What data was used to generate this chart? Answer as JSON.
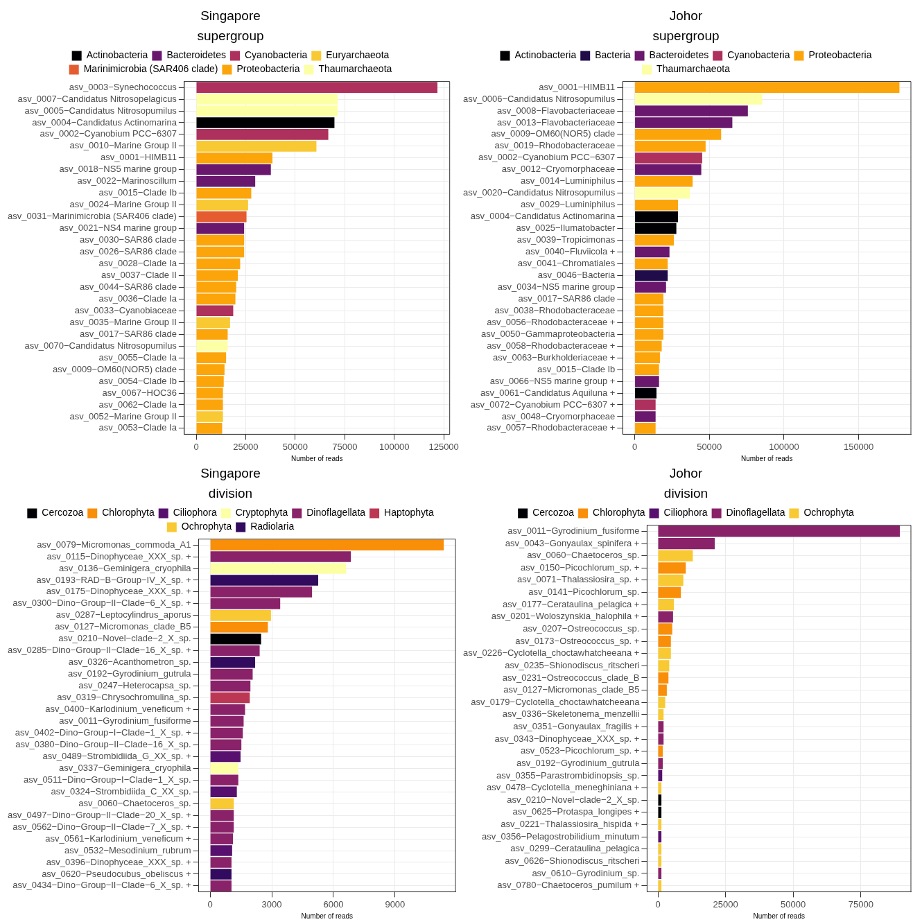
{
  "chart_data": [
    {
      "type": "bar",
      "orientation": "horizontal",
      "stacked": true,
      "title": "Singapore",
      "xlabel": "Number of reads",
      "legend_title": "supergroup",
      "legend": "top",
      "grid": true,
      "xlim": [
        -6000,
        128000
      ],
      "xticks": [
        0,
        25000,
        50000,
        75000,
        100000,
        125000
      ],
      "categories": [
        "asv_0003−Synechococcus",
        "asv_0007−Candidatus Nitrosopelagicus",
        "asv_0005−Candidatus Nitrosopumilus",
        "asv_0004−Candidatus Actinomarina",
        "asv_0002−Cyanobium PCC−6307",
        "asv_0010−Marine Group II",
        "asv_0001−HIMB11",
        "asv_0018−NS5 marine group",
        "asv_0022−Marinoscillum",
        "asv_0015−Clade Ib",
        "asv_0024−Marine Group II",
        "asv_0031−Marinimicrobia (SAR406 clade)",
        "asv_0021−NS4 marine group",
        "asv_0030−SAR86 clade",
        "asv_0026−SAR86 clade",
        "asv_0028−Clade Ia",
        "asv_0037−Clade II",
        "asv_0044−SAR86 clade",
        "asv_0036−Clade Ia",
        "asv_0033−Cyanobiaceae",
        "asv_0035−Marine Group II",
        "asv_0017−SAR86 clade",
        "asv_0070−Candidatus Nitrosopumilus",
        "asv_0055−Clade Ia",
        "asv_0009−OM60(NOR5) clade",
        "asv_0054−Clade Ib",
        "asv_0067−HOC36",
        "asv_0062−Clade Ia",
        "asv_0052−Marine Group II",
        "asv_0053−Clade Ia"
      ],
      "series": [
        {
          "name": "Actinobacteria",
          "color": "#000004",
          "values": [
            null,
            null,
            null,
            69800,
            null,
            null,
            null,
            null,
            null,
            null,
            null,
            null,
            null,
            null,
            null,
            null,
            null,
            null,
            null,
            null,
            null,
            null,
            null,
            null,
            null,
            null,
            null,
            null,
            null,
            null
          ]
        },
        {
          "name": "Bacteroidetes",
          "color": "#6a176e",
          "values": [
            null,
            null,
            null,
            null,
            null,
            null,
            null,
            37700,
            29800,
            null,
            null,
            null,
            24200,
            null,
            null,
            null,
            null,
            null,
            null,
            null,
            null,
            null,
            null,
            null,
            null,
            null,
            null,
            null,
            null,
            null
          ]
        },
        {
          "name": "Cyanobacteria",
          "color": "#ae305c",
          "values": [
            121800,
            null,
            null,
            null,
            66700,
            null,
            null,
            null,
            null,
            null,
            null,
            null,
            null,
            null,
            null,
            null,
            null,
            null,
            null,
            18700,
            null,
            null,
            null,
            null,
            null,
            null,
            null,
            null,
            null,
            null
          ]
        },
        {
          "name": "Euryarchaeota",
          "color": "#f8c932",
          "values": [
            null,
            null,
            null,
            null,
            null,
            60700,
            null,
            null,
            null,
            null,
            26200,
            null,
            null,
            null,
            null,
            null,
            null,
            null,
            null,
            null,
            17100,
            null,
            null,
            null,
            null,
            null,
            null,
            null,
            13500,
            null
          ]
        },
        {
          "name": "Marinimicrobia (SAR406 clade)",
          "color": "#e55c30",
          "values": [
            null,
            null,
            null,
            null,
            null,
            null,
            null,
            null,
            null,
            null,
            null,
            25400,
            null,
            null,
            null,
            null,
            null,
            null,
            null,
            null,
            null,
            null,
            null,
            null,
            null,
            null,
            null,
            null,
            null,
            null
          ]
        },
        {
          "name": "Proteobacteria",
          "color": "#fca50a",
          "values": [
            null,
            null,
            null,
            null,
            null,
            null,
            38500,
            null,
            null,
            27800,
            null,
            null,
            null,
            24200,
            24200,
            22200,
            21000,
            20200,
            19800,
            null,
            null,
            15900,
            null,
            15100,
            14300,
            13900,
            13500,
            13500,
            null,
            13100
          ]
        },
        {
          "name": "Thaumarchaeota",
          "color": "#fcffa4",
          "values": [
            null,
            71400,
            71400,
            null,
            null,
            null,
            null,
            null,
            null,
            null,
            null,
            null,
            null,
            null,
            null,
            null,
            null,
            null,
            null,
            null,
            null,
            null,
            15900,
            null,
            null,
            null,
            null,
            null,
            null,
            null
          ]
        }
      ]
    },
    {
      "type": "bar",
      "orientation": "horizontal",
      "stacked": true,
      "title": "Johor",
      "xlabel": "Number of reads",
      "legend_title": "supergroup",
      "legend": "top",
      "grid": true,
      "xlim": [
        -8000,
        185000
      ],
      "xticks": [
        0,
        50000,
        100000,
        150000
      ],
      "categories": [
        "asv_0001−HIMB11",
        "asv_0006−Candidatus Nitrosopumilus",
        "asv_0008−Flavobacteriaceae",
        "asv_0013−Flavobacteriaceae",
        "asv_0009−OM60(NOR5) clade",
        "asv_0019−Rhodobacteraceae",
        "asv_0002−Cyanobium PCC−6307",
        "asv_0012−Cryomorphaceae",
        "asv_0014−Luminiphilus",
        "asv_0020−Candidatus Nitrosopumilus",
        "asv_0029−Luminiphilus",
        "asv_0004−Candidatus Actinomarina",
        "asv_0025−Ilumatobacter",
        "asv_0039−Tropicimonas",
        "asv_0040−Fluviicola +",
        "asv_0041−Chromatiales",
        "asv_0046−Bacteria",
        "asv_0034−NS5 marine group",
        "asv_0017−SAR86 clade",
        "asv_0038−Rhodobacteraceae",
        "asv_0056−Rhodobacteraceae +",
        "asv_0050−Gammaproteobacteria",
        "asv_0058−Rhodobacteraceae +",
        "asv_0063−Burkholderiaceae +",
        "asv_0015−Clade Ib",
        "asv_0066−NS5 marine group +",
        "asv_0061−Candidatus Aquiluna +",
        "asv_0072−Cyanobium PCC−6307 +",
        "asv_0048−Cryomorphaceae",
        "asv_0057−Rhodobacteraceae +"
      ],
      "series": [
        {
          "name": "Actinobacteria",
          "color": "#000004",
          "values": [
            null,
            null,
            null,
            null,
            null,
            null,
            null,
            null,
            null,
            null,
            null,
            29000,
            27900,
            null,
            null,
            null,
            null,
            null,
            null,
            null,
            null,
            null,
            null,
            null,
            null,
            null,
            14600,
            null,
            null,
            null
          ]
        },
        {
          "name": "Bacteria",
          "color": "#1f0c48",
          "values": [
            null,
            null,
            null,
            null,
            null,
            null,
            null,
            null,
            null,
            null,
            null,
            null,
            null,
            null,
            null,
            null,
            22100,
            null,
            null,
            null,
            null,
            null,
            null,
            null,
            null,
            null,
            null,
            null,
            null,
            null
          ]
        },
        {
          "name": "Bacteroidetes",
          "color": "#6a176e",
          "values": [
            null,
            null,
            75800,
            65400,
            null,
            null,
            null,
            44600,
            null,
            null,
            null,
            null,
            null,
            null,
            23300,
            null,
            null,
            21000,
            null,
            null,
            null,
            null,
            null,
            null,
            null,
            16300,
            null,
            null,
            14000,
            null
          ]
        },
        {
          "name": "Cyanobacteria",
          "color": "#ae305c",
          "values": [
            null,
            null,
            null,
            null,
            null,
            null,
            45200,
            null,
            null,
            null,
            null,
            null,
            null,
            null,
            null,
            null,
            null,
            null,
            null,
            null,
            null,
            null,
            null,
            null,
            null,
            null,
            null,
            14000,
            null,
            null
          ]
        },
        {
          "name": "Proteobacteria",
          "color": "#fca50a",
          "values": [
            177300,
            null,
            null,
            null,
            57900,
            47500,
            null,
            null,
            38800,
            null,
            29000,
            null,
            null,
            26200,
            null,
            22100,
            null,
            null,
            19200,
            19200,
            19200,
            19200,
            18100,
            16900,
            16300,
            null,
            null,
            null,
            null,
            14000
          ]
        },
        {
          "name": "Thaumarchaeota",
          "color": "#fcffa4",
          "values": [
            null,
            85400,
            null,
            null,
            null,
            null,
            null,
            null,
            null,
            36900,
            null,
            null,
            null,
            null,
            null,
            null,
            null,
            null,
            null,
            null,
            null,
            null,
            null,
            null,
            null,
            null,
            null,
            null,
            null,
            null
          ]
        }
      ]
    },
    {
      "type": "bar",
      "orientation": "horizontal",
      "stacked": true,
      "title": "Singapore",
      "xlabel": "Number of reads",
      "legend_title": "division",
      "legend": "top",
      "grid": true,
      "xlim": [
        -560,
        11940
      ],
      "xticks": [
        0,
        3000,
        6000,
        9000
      ],
      "categories": [
        "asv_0079−Micromonas_commoda_A1",
        "asv_0115−Dinophyceae_XXX_sp. +",
        "asv_0136−Geminigera_cryophila",
        "asv_0193−RAD−B−Group−IV_X_sp. +",
        "asv_0175−Dinophyceae_XXX_sp. +",
        "asv_0300−Dino−Group−II−Clade−6_X_sp. +",
        "asv_0287−Leptocylindrus_aporus",
        "asv_0127−Micromonas_clade_B5",
        "asv_0210−Novel−clade−2_X_sp.",
        "asv_0285−Dino−Group−II−Clade−16_X_sp. +",
        "asv_0326−Acanthometron_sp.",
        "asv_0192−Gyrodinium_gutrula",
        "asv_0247−Heterocapsa_sp.",
        "asv_0319−Chrysochromulina_sp.",
        "asv_0400−Karlodinium_veneficum +",
        "asv_0011−Gyrodinium_fusiforme",
        "asv_0402−Dino−Group−I−Clade−1_X_sp. +",
        "asv_0380−Dino−Group−II−Clade−16_X_sp.",
        "asv_0489−Strombidiida_G_XX_sp. +",
        "asv_0337−Geminigera_cryophila",
        "asv_0511−Dino−Group−I−Clade−1_X_sp.",
        "asv_0324−Strombidiida_C_XX_sp.",
        "asv_0060−Chaetoceros_sp.",
        "asv_0497−Dino−Group−II−Clade−20_X_sp. +",
        "asv_0562−Dino−Group−II−Clade−7_X_sp. +",
        "asv_0561−Karlodinium_veneficum +",
        "asv_0532−Mesodinium_rubrum",
        "asv_0396−Dinophyceae_XXX_sp. +",
        "asv_0620−Pseudocubus_obeliscus +",
        "asv_0434−Dino−Group−II−Clade−6_X_sp. +"
      ],
      "series": [
        {
          "name": "Cercozoa",
          "color": "#000004",
          "values": [
            null,
            null,
            null,
            null,
            null,
            null,
            null,
            null,
            2480,
            null,
            null,
            null,
            null,
            null,
            null,
            null,
            null,
            null,
            null,
            null,
            null,
            null,
            null,
            null,
            null,
            null,
            null,
            null,
            null,
            null
          ]
        },
        {
          "name": "Chlorophyta",
          "color": "#f98e09",
          "values": [
            11370,
            null,
            null,
            null,
            null,
            null,
            null,
            2810,
            null,
            null,
            null,
            null,
            null,
            null,
            null,
            null,
            null,
            null,
            null,
            null,
            null,
            null,
            null,
            null,
            null,
            null,
            null,
            null,
            null,
            null
          ]
        },
        {
          "name": "Ciliophora",
          "color": "#57106e",
          "values": [
            null,
            null,
            null,
            null,
            null,
            null,
            null,
            null,
            null,
            null,
            null,
            null,
            null,
            null,
            null,
            null,
            null,
            null,
            1480,
            null,
            null,
            1300,
            null,
            null,
            null,
            null,
            1070,
            null,
            null,
            null
          ]
        },
        {
          "name": "Cryptophyta",
          "color": "#fcffa4",
          "values": [
            null,
            null,
            6620,
            null,
            null,
            null,
            null,
            null,
            null,
            null,
            null,
            null,
            null,
            null,
            null,
            null,
            null,
            null,
            null,
            1370,
            null,
            null,
            null,
            null,
            null,
            null,
            null,
            null,
            null,
            null
          ]
        },
        {
          "name": "Dinoflagellata",
          "color": "#8a226a",
          "values": [
            null,
            6850,
            null,
            null,
            4960,
            3410,
            null,
            null,
            null,
            2410,
            null,
            2070,
            1960,
            null,
            1700,
            1630,
            1590,
            1520,
            null,
            null,
            1370,
            null,
            null,
            1150,
            1150,
            1110,
            null,
            1040,
            null,
            1040
          ]
        },
        {
          "name": "Haptophyta",
          "color": "#bc3754",
          "values": [
            null,
            null,
            null,
            null,
            null,
            null,
            null,
            null,
            null,
            null,
            null,
            null,
            null,
            1930,
            null,
            null,
            null,
            null,
            null,
            null,
            null,
            null,
            null,
            null,
            null,
            null,
            null,
            null,
            null,
            null
          ]
        },
        {
          "name": "Ochrophyta",
          "color": "#f8c932",
          "values": [
            null,
            null,
            null,
            null,
            null,
            null,
            2960,
            null,
            null,
            null,
            null,
            null,
            null,
            null,
            null,
            null,
            null,
            null,
            null,
            null,
            null,
            null,
            1150,
            null,
            null,
            null,
            null,
            null,
            null,
            null
          ]
        },
        {
          "name": "Radiolaria",
          "color": "#320a5e",
          "values": [
            null,
            null,
            null,
            5260,
            null,
            null,
            null,
            null,
            null,
            null,
            2190,
            null,
            null,
            null,
            null,
            null,
            null,
            null,
            null,
            null,
            null,
            null,
            null,
            null,
            null,
            null,
            null,
            null,
            1040,
            null
          ]
        }
      ]
    },
    {
      "type": "bar",
      "orientation": "horizontal",
      "stacked": true,
      "title": "Johor",
      "xlabel": "Number of reads",
      "legend_title": "division",
      "legend": "top",
      "grid": true,
      "xlim": [
        -4000,
        93500
      ],
      "xticks": [
        0,
        25000,
        50000,
        75000
      ],
      "categories": [
        "asv_0011−Gyrodinium_fusiforme",
        "asv_0043−Gonyaulax_spinifera +",
        "asv_0060−Chaetoceros_sp.",
        "asv_0150−Picochlorum_sp. +",
        "asv_0071−Thalassiosira_sp. +",
        "asv_0141−Picochlorum_sp.",
        "asv_0177−Cerataulina_pelagica +",
        "asv_0201−Woloszynskia_halophila +",
        "asv_0207−Ostreococcus_sp.",
        "asv_0173−Ostreococcus_sp. +",
        "asv_0226−Cyclotella_choctawhatcheeana +",
        "asv_0235−Shionodiscus_ritscheri",
        "asv_0231−Ostreococcus_clade_B",
        "asv_0127−Micromonas_clade_B5",
        "asv_0179−Cyclotella_choctawhatcheeana",
        "asv_0336−Skeletonema_menzellii",
        "asv_0351−Gonyaulax_fragilis +",
        "asv_0343−Dinophyceae_XXX_sp. +",
        "asv_0523−Picochlorum_sp. +",
        "asv_0192−Gyrodinium_gutrula",
        "asv_0355−Parastrombidinopsis_sp.",
        "asv_0478−Cyclotella_meneghiniana +",
        "asv_0210−Novel−clade−2_X_sp.",
        "asv_0625−Protaspa_longipes +",
        "asv_0221−Thalassiosira_hispida +",
        "asv_0356−Pelagostrobilidium_minutum",
        "asv_0299−Cerataulina_pelagica",
        "asv_0626−Shionodiscus_ritscheri",
        "asv_0610−Gyrodinium_sp.",
        "asv_0780−Chaetoceros_pumilum +"
      ],
      "series": [
        {
          "name": "Cercozoa",
          "color": "#000004",
          "values": [
            null,
            null,
            null,
            null,
            null,
            null,
            null,
            null,
            null,
            null,
            null,
            null,
            null,
            null,
            null,
            null,
            null,
            null,
            null,
            null,
            null,
            null,
            1300,
            1300,
            null,
            null,
            null,
            null,
            null,
            null
          ]
        },
        {
          "name": "Chlorophyta",
          "color": "#f98e09",
          "values": [
            null,
            null,
            null,
            10300,
            null,
            8500,
            null,
            null,
            5300,
            4800,
            null,
            null,
            3900,
            3300,
            null,
            null,
            null,
            null,
            1800,
            null,
            null,
            null,
            null,
            null,
            null,
            null,
            null,
            null,
            null,
            null
          ]
        },
        {
          "name": "Ciliophora",
          "color": "#57106e",
          "values": [
            null,
            null,
            null,
            null,
            null,
            null,
            null,
            null,
            null,
            null,
            null,
            null,
            null,
            null,
            null,
            null,
            null,
            null,
            null,
            null,
            1600,
            null,
            null,
            null,
            null,
            1300,
            null,
            null,
            null,
            null
          ]
        },
        {
          "name": "Dinoflagellata",
          "color": "#8a226a",
          "values": [
            89400,
            21000,
            null,
            null,
            null,
            null,
            null,
            5600,
            null,
            null,
            null,
            null,
            null,
            null,
            null,
            null,
            2100,
            2100,
            null,
            1800,
            null,
            null,
            null,
            null,
            null,
            null,
            null,
            null,
            1300,
            null
          ]
        },
        {
          "name": "Ochrophyta",
          "color": "#f8c932",
          "values": [
            null,
            null,
            12900,
            null,
            9400,
            null,
            5900,
            null,
            null,
            null,
            4800,
            4200,
            null,
            null,
            2700,
            2100,
            null,
            null,
            null,
            null,
            null,
            1300,
            null,
            null,
            1300,
            null,
            1300,
            1300,
            null,
            1300
          ]
        }
      ]
    }
  ]
}
